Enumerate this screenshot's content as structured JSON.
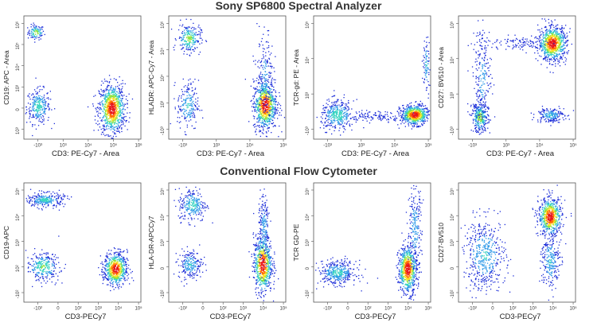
{
  "sections": [
    {
      "title": "Sony SP6800 Spectral Analyzer"
    },
    {
      "title": "Conventional Flow Cytometer"
    }
  ],
  "colors": {
    "density_scale": [
      "#1a2bd8",
      "#2f9ae8",
      "#33d3c0",
      "#8ee23a",
      "#ffe21f",
      "#ff6a00",
      "#e8141a"
    ],
    "frame": "#555555"
  },
  "chart_data": [
    {
      "type": "scatter",
      "row": "Sony SP6800 Spectral Analyzer",
      "xlabel": "CD3: PE-Cy7 - Area",
      "ylabel": "CD19: APC - Area",
      "xticks": [
        "-10³",
        "10³",
        "10⁴",
        "10⁵",
        "10⁶"
      ],
      "yticks": [
        "10⁶",
        "10⁵",
        "10⁴",
        "10³",
        "0",
        "10³"
      ],
      "populations": [
        {
          "x": 0.1,
          "y": 0.87,
          "sx": 0.035,
          "sy": 0.03,
          "n": 110,
          "peak": 0.55
        },
        {
          "x": 0.12,
          "y": 0.27,
          "sx": 0.05,
          "sy": 0.07,
          "n": 280,
          "peak": 0.4
        },
        {
          "x": 0.75,
          "y": 0.25,
          "sx": 0.055,
          "sy": 0.1,
          "n": 900,
          "peak": 1.0
        }
      ]
    },
    {
      "type": "scatter",
      "row": "Sony SP6800 Spectral Analyzer",
      "xlabel": "CD3: PE-Cy7 - Area",
      "ylabel": "HLADR: APC-Cy7 - Area",
      "xticks": [
        "-10³",
        "10³",
        "10⁴",
        "10⁵"
      ],
      "yticks": [
        "10⁶",
        "10⁵",
        "10⁴",
        "10³",
        "-10³"
      ],
      "populations": [
        {
          "x": 0.17,
          "y": 0.82,
          "sx": 0.05,
          "sy": 0.06,
          "n": 230,
          "peak": 0.5
        },
        {
          "x": 0.16,
          "y": 0.28,
          "sx": 0.045,
          "sy": 0.1,
          "n": 200,
          "peak": 0.3
        },
        {
          "x": 0.82,
          "y": 0.28,
          "sx": 0.05,
          "sy": 0.1,
          "n": 800,
          "peak": 1.0
        },
        {
          "x": 0.82,
          "y": 0.5,
          "sx": 0.035,
          "sy": 0.2,
          "n": 200,
          "peak": 0.2
        }
      ]
    },
    {
      "type": "scatter",
      "row": "Sony SP6800 Spectral Analyzer",
      "xlabel": "CD3: PE-Cy7 - Area",
      "ylabel": "TCR-gd: PE - Area",
      "xticks": [
        "-10³",
        "10³",
        "10⁴",
        "10⁵"
      ],
      "yticks": [
        "10⁵",
        "10⁴",
        "10³",
        "-10³"
      ],
      "populations": [
        {
          "x": 0.2,
          "y": 0.2,
          "sx": 0.07,
          "sy": 0.06,
          "n": 380,
          "peak": 0.4
        },
        {
          "x": 0.86,
          "y": 0.2,
          "sx": 0.06,
          "sy": 0.04,
          "n": 650,
          "peak": 1.0
        },
        {
          "x": 0.55,
          "y": 0.19,
          "sx": 0.12,
          "sy": 0.02,
          "n": 110,
          "peak": 0.1
        },
        {
          "x": 0.96,
          "y": 0.6,
          "sx": 0.015,
          "sy": 0.12,
          "n": 90,
          "peak": 0.3
        }
      ]
    },
    {
      "type": "scatter",
      "row": "Sony SP6800 Spectral Analyzer",
      "xlabel": "CD3: PE-Cy7 - Area",
      "ylabel": "CD27: BV510 - Area",
      "xticks": [
        "-10³",
        "10³",
        "10⁴",
        "10⁵"
      ],
      "yticks": [
        "10⁵",
        "10⁴",
        "10³",
        "-10³"
      ],
      "populations": [
        {
          "x": 0.8,
          "y": 0.78,
          "sx": 0.06,
          "sy": 0.07,
          "n": 800,
          "peak": 1.0
        },
        {
          "x": 0.18,
          "y": 0.18,
          "sx": 0.035,
          "sy": 0.06,
          "n": 300,
          "peak": 0.55
        },
        {
          "x": 0.2,
          "y": 0.5,
          "sx": 0.04,
          "sy": 0.22,
          "n": 250,
          "peak": 0.2
        },
        {
          "x": 0.78,
          "y": 0.2,
          "sx": 0.06,
          "sy": 0.03,
          "n": 200,
          "peak": 0.3
        },
        {
          "x": 0.5,
          "y": 0.78,
          "sx": 0.12,
          "sy": 0.03,
          "n": 100,
          "peak": 0.1
        }
      ]
    },
    {
      "type": "scatter",
      "row": "Conventional Flow Cytometer",
      "xlabel": "CD3-PECy7",
      "ylabel": "CD19-APC",
      "xticks": [
        "-10²",
        "0",
        "10²",
        "10³",
        "10⁴",
        "10⁵"
      ],
      "yticks": [
        "10⁵",
        "10⁴",
        "10³",
        "10²",
        "-10²"
      ],
      "populations": [
        {
          "x": 0.18,
          "y": 0.86,
          "sx": 0.08,
          "sy": 0.03,
          "n": 280,
          "peak": 0.35
        },
        {
          "x": 0.16,
          "y": 0.3,
          "sx": 0.07,
          "sy": 0.06,
          "n": 280,
          "peak": 0.45
        },
        {
          "x": 0.78,
          "y": 0.28,
          "sx": 0.05,
          "sy": 0.07,
          "n": 650,
          "peak": 1.0
        }
      ]
    },
    {
      "type": "scatter",
      "row": "Conventional Flow Cytometer",
      "xlabel": "CD3-PECy7",
      "ylabel": "HLA-DR-APCCy7",
      "xticks": [
        "-10²",
        "0",
        "10²",
        "10³",
        "10⁴",
        "10⁵"
      ],
      "yticks": [
        "10⁵",
        "10⁴",
        "10³",
        "0",
        "-10²"
      ],
      "populations": [
        {
          "x": 0.2,
          "y": 0.82,
          "sx": 0.06,
          "sy": 0.07,
          "n": 260,
          "peak": 0.35
        },
        {
          "x": 0.18,
          "y": 0.32,
          "sx": 0.05,
          "sy": 0.06,
          "n": 220,
          "peak": 0.3
        },
        {
          "x": 0.8,
          "y": 0.32,
          "sx": 0.04,
          "sy": 0.12,
          "n": 700,
          "peak": 1.0
        },
        {
          "x": 0.81,
          "y": 0.62,
          "sx": 0.025,
          "sy": 0.16,
          "n": 200,
          "peak": 0.25
        }
      ]
    },
    {
      "type": "scatter",
      "row": "Conventional Flow Cytometer",
      "xlabel": "CD3-PECy7",
      "ylabel": "TCR GD-PE",
      "xticks": [
        "-10²",
        "0",
        "10²",
        "10³",
        "10⁴",
        "10⁵"
      ],
      "yticks": [
        "10⁵",
        "10⁴",
        "10³",
        "0",
        "-10²"
      ],
      "populations": [
        {
          "x": 0.2,
          "y": 0.25,
          "sx": 0.08,
          "sy": 0.05,
          "n": 400,
          "peak": 0.35
        },
        {
          "x": 0.8,
          "y": 0.28,
          "sx": 0.04,
          "sy": 0.1,
          "n": 700,
          "peak": 1.0
        },
        {
          "x": 0.86,
          "y": 0.62,
          "sx": 0.03,
          "sy": 0.18,
          "n": 220,
          "peak": 0.25
        }
      ]
    },
    {
      "type": "scatter",
      "row": "Conventional Flow Cytometer",
      "xlabel": "CD3-PECy7",
      "ylabel": "CD27-BV510",
      "xticks": [
        "-10²",
        "0",
        "10²",
        "10³",
        "10⁴",
        "10⁵"
      ],
      "yticks": [
        "10⁵",
        "10⁴",
        "10³",
        "0",
        "-10²"
      ],
      "populations": [
        {
          "x": 0.78,
          "y": 0.72,
          "sx": 0.05,
          "sy": 0.08,
          "n": 650,
          "peak": 1.0
        },
        {
          "x": 0.22,
          "y": 0.4,
          "sx": 0.09,
          "sy": 0.15,
          "n": 500,
          "peak": 0.3
        },
        {
          "x": 0.78,
          "y": 0.35,
          "sx": 0.04,
          "sy": 0.12,
          "n": 250,
          "peak": 0.3
        }
      ]
    }
  ]
}
